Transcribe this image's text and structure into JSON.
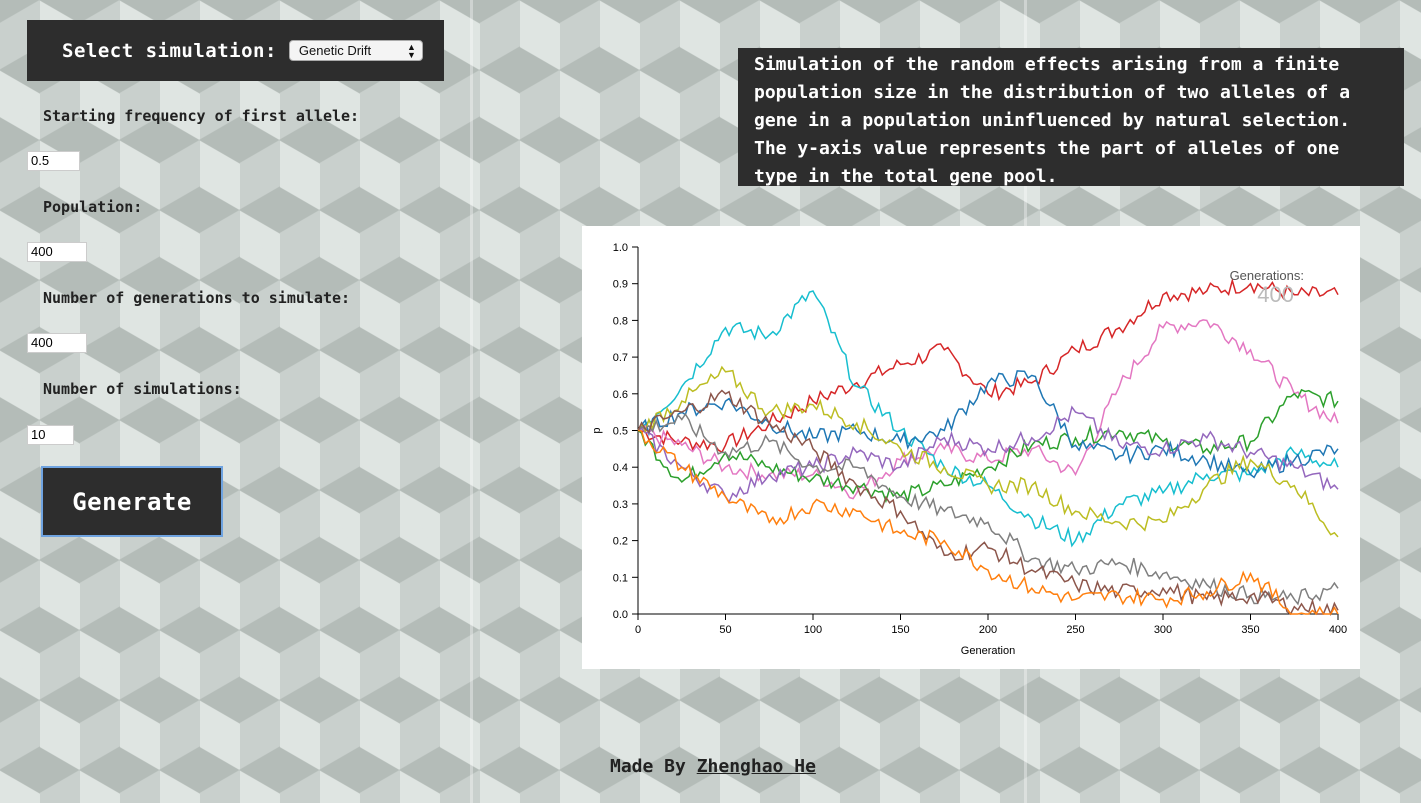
{
  "controls": {
    "select_label": "Select simulation:",
    "simulation_selected": "Genetic Drift",
    "fields": [
      {
        "label": "Starting frequency of first allele:",
        "value": "0.5"
      },
      {
        "label": "Population:",
        "value": "400"
      },
      {
        "label": "Number of generations to simulate:",
        "value": "400"
      },
      {
        "label": "Number of simulations:",
        "value": "10"
      }
    ],
    "generate_label": "Generate"
  },
  "description": "Simulation of the random effects arising from a finite population size in the distribution of two alleles of a gene in a population uninfluenced by natural selection. The y-axis value represents the part of alleles of one type in the total gene pool.",
  "footer": {
    "prefix": "Made By",
    "author": "Zhenghao He"
  },
  "chart_data": {
    "type": "line",
    "xlabel": "Generation",
    "ylabel": "p",
    "xlim": [
      0,
      400
    ],
    "ylim": [
      0,
      1
    ],
    "xticks": [
      0,
      50,
      100,
      150,
      200,
      250,
      300,
      350,
      400
    ],
    "yticks": [
      0.0,
      0.1,
      0.2,
      0.3,
      0.4,
      0.5,
      0.6,
      0.7,
      0.8,
      0.9,
      1.0
    ],
    "grid": false,
    "legend": "none",
    "annotation": {
      "label": "Generations:",
      "value": "400"
    },
    "x": [
      0,
      25,
      50,
      75,
      100,
      125,
      150,
      175,
      200,
      225,
      250,
      275,
      300,
      325,
      350,
      375,
      400
    ],
    "series": [
      {
        "color": "#d62728",
        "values": [
          0.5,
          0.47,
          0.46,
          0.52,
          0.58,
          0.63,
          0.68,
          0.72,
          0.6,
          0.63,
          0.72,
          0.78,
          0.87,
          0.88,
          0.9,
          0.87,
          0.87
        ]
      },
      {
        "color": "#e377c2",
        "values": [
          0.5,
          0.46,
          0.4,
          0.38,
          0.38,
          0.33,
          0.42,
          0.45,
          0.42,
          0.45,
          0.38,
          0.62,
          0.78,
          0.8,
          0.72,
          0.6,
          0.52
        ]
      },
      {
        "color": "#2ca02c",
        "values": [
          0.5,
          0.36,
          0.44,
          0.4,
          0.37,
          0.35,
          0.32,
          0.35,
          0.4,
          0.46,
          0.48,
          0.5,
          0.47,
          0.45,
          0.47,
          0.6,
          0.58
        ]
      },
      {
        "color": "#17becf",
        "values": [
          0.5,
          0.62,
          0.78,
          0.76,
          0.88,
          0.62,
          0.5,
          0.4,
          0.35,
          0.26,
          0.2,
          0.3,
          0.33,
          0.38,
          0.38,
          0.44,
          0.4
        ]
      },
      {
        "color": "#1f77b4",
        "values": [
          0.5,
          0.55,
          0.58,
          0.52,
          0.48,
          0.5,
          0.47,
          0.5,
          0.63,
          0.65,
          0.46,
          0.43,
          0.45,
          0.42,
          0.38,
          0.42,
          0.45
        ]
      },
      {
        "color": "#9467bd",
        "values": [
          0.5,
          0.4,
          0.32,
          0.38,
          0.4,
          0.44,
          0.4,
          0.48,
          0.45,
          0.48,
          0.55,
          0.46,
          0.45,
          0.48,
          0.44,
          0.4,
          0.34
        ]
      },
      {
        "color": "#bcbd22",
        "values": [
          0.5,
          0.58,
          0.66,
          0.55,
          0.57,
          0.52,
          0.45,
          0.4,
          0.35,
          0.35,
          0.28,
          0.25,
          0.25,
          0.35,
          0.42,
          0.35,
          0.21
        ]
      },
      {
        "color": "#7f7f7f",
        "values": [
          0.5,
          0.53,
          0.44,
          0.47,
          0.4,
          0.4,
          0.32,
          0.28,
          0.25,
          0.15,
          0.12,
          0.14,
          0.11,
          0.08,
          0.05,
          0.04,
          0.07
        ]
      },
      {
        "color": "#8c564b",
        "values": [
          0.5,
          0.55,
          0.6,
          0.52,
          0.45,
          0.35,
          0.28,
          0.16,
          0.18,
          0.12,
          0.08,
          0.06,
          0.07,
          0.04,
          0.05,
          0.02,
          0.01
        ]
      },
      {
        "color": "#ff7f0e",
        "values": [
          0.5,
          0.4,
          0.32,
          0.25,
          0.3,
          0.28,
          0.22,
          0.2,
          0.12,
          0.07,
          0.04,
          0.05,
          0.04,
          0.06,
          0.11,
          0.0,
          0.0
        ]
      }
    ]
  }
}
